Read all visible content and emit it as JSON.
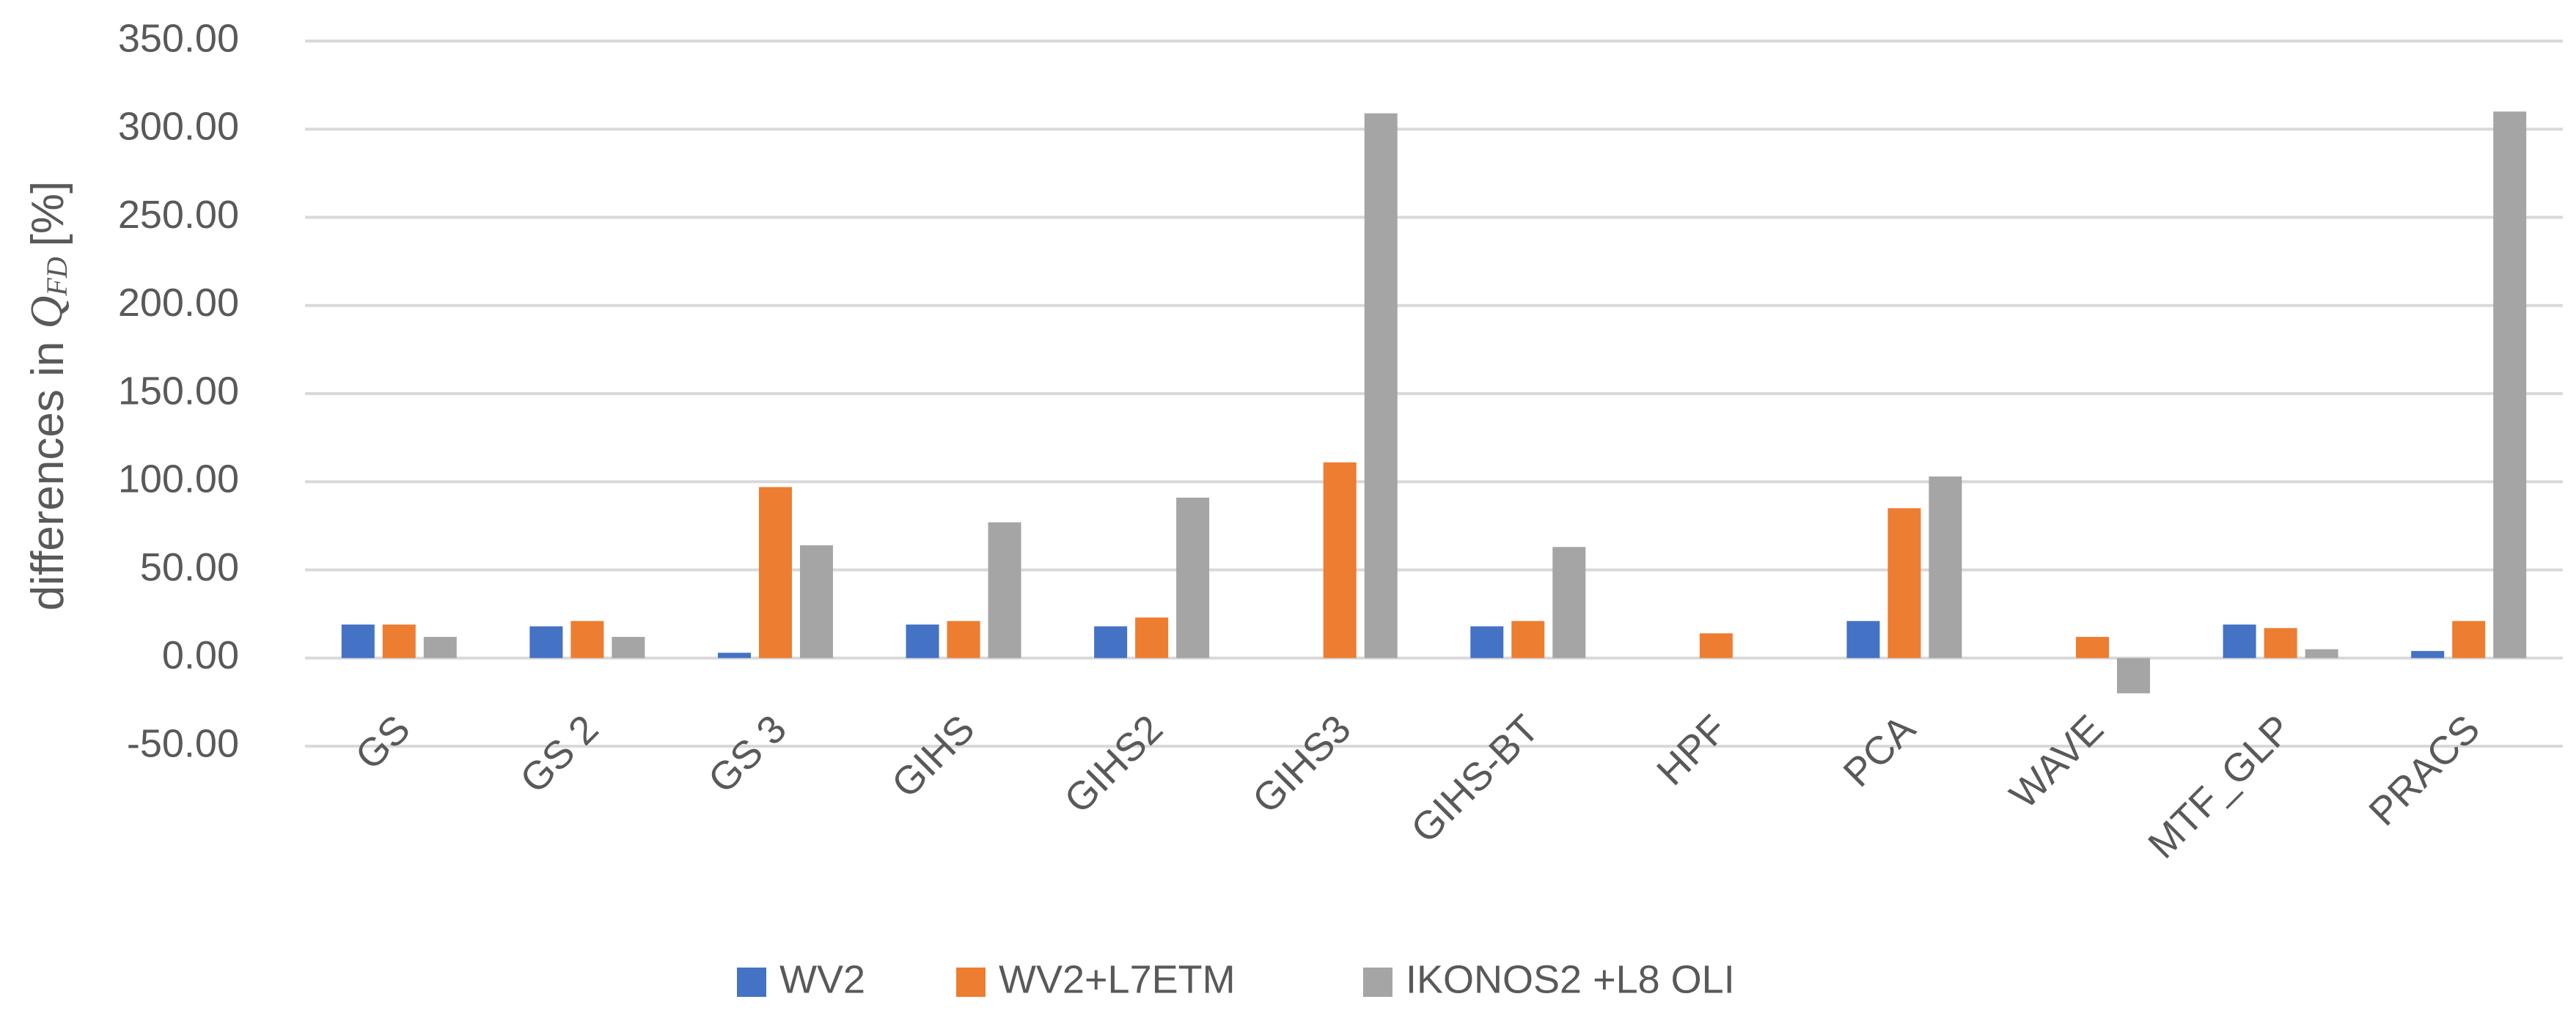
{
  "chart_data": {
    "type": "bar",
    "ylabel": "differences in",
    "ylabel_symbol": "Q",
    "ylabel_subscript": "FD",
    "ylabel_unit": "[%]",
    "categories": [
      "GS",
      "GS 2",
      "GS 3",
      "GIHS",
      "GIHS2",
      "GIHS3",
      "GIHS-BT",
      "HPF",
      "PCA",
      "WAVE",
      "MTF_GLP",
      "PRACS"
    ],
    "series": [
      {
        "name": "WV2",
        "color": "#4472c4",
        "values": [
          19,
          18,
          3,
          19,
          18,
          null,
          18,
          null,
          21,
          null,
          19,
          4
        ]
      },
      {
        "name": "WV2+L7ETM",
        "color": "#ed7d31",
        "values": [
          19,
          21,
          97,
          21,
          23,
          111,
          21,
          14,
          85,
          12,
          17,
          21
        ]
      },
      {
        "name": "IKONOS2 +L8 OLI",
        "color": "#a5a5a5",
        "values": [
          12,
          12,
          64,
          77,
          91,
          309,
          63,
          null,
          103,
          -20,
          5,
          310
        ]
      }
    ],
    "ylim": [
      -50,
      350
    ],
    "yticks": [
      {
        "value": -50,
        "label": "-50.00"
      },
      {
        "value": 0,
        "label": "0.00"
      },
      {
        "value": 50,
        "label": "50.00"
      },
      {
        "value": 100,
        "label": "100.00"
      },
      {
        "value": 150,
        "label": "150.00"
      },
      {
        "value": 200,
        "label": "200.00"
      },
      {
        "value": 250,
        "label": "250.00"
      },
      {
        "value": 300,
        "label": "300.00"
      },
      {
        "value": 350,
        "label": "350.00"
      }
    ],
    "grid": true,
    "legend": "bottom"
  }
}
